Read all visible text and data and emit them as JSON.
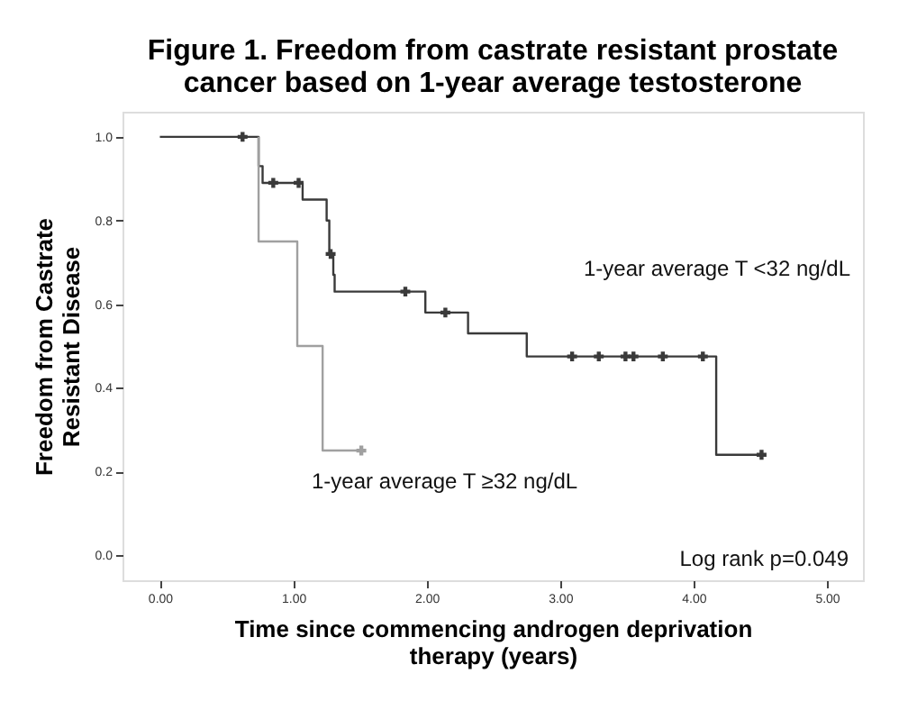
{
  "chart_data": {
    "type": "step",
    "title": "Figure 1. Freedom from castrate resistant prostate\ncancer based on 1-year average testosterone",
    "xlabel": "Time since commencing androgen deprivation\ntherapy (years)",
    "ylabel": "Freedom from Castrate\nResistant Disease",
    "xlim": [
      -0.28,
      5.27
    ],
    "ylim": [
      -0.06,
      1.06
    ],
    "xticks": [
      {
        "value": 0,
        "label": "0.00"
      },
      {
        "value": 1,
        "label": "1.00"
      },
      {
        "value": 2,
        "label": "2.00"
      },
      {
        "value": 3,
        "label": "3.00"
      },
      {
        "value": 4,
        "label": "4.00"
      },
      {
        "value": 5,
        "label": "5.00"
      }
    ],
    "yticks": [
      {
        "value": 0,
        "label": "0.0"
      },
      {
        "value": 0.2,
        "label": "0.2"
      },
      {
        "value": 0.4,
        "label": "0.4"
      },
      {
        "value": 0.6,
        "label": "0.6"
      },
      {
        "value": 0.8,
        "label": "0.8"
      },
      {
        "value": 1,
        "label": "1.0"
      }
    ],
    "grid": false,
    "series": [
      {
        "color": "#3a3a3a",
        "x": [
          0,
          0.74,
          0.77,
          1.07,
          1.25,
          1.27,
          1.3,
          1.31,
          1.99,
          2.31,
          2.75,
          4.17,
          4.51
        ],
        "values": [
          1.0,
          0.93,
          0.89,
          0.85,
          0.8,
          0.72,
          0.67,
          0.63,
          0.58,
          0.53,
          0.475,
          0.24,
          0.24
        ]
      },
      {
        "color": "#a0a0a0",
        "x": [
          0.74,
          0.74,
          1.03,
          1.22,
          1.51
        ],
        "values": [
          1.0,
          0.75,
          0.5,
          0.25,
          0.25
        ]
      },
      {
        "type": "scatter",
        "marker": "cross",
        "color": "#3a3a3a",
        "x": [
          0.62,
          0.85,
          1.04,
          1.28,
          1.84,
          2.14,
          3.09,
          3.29,
          3.49,
          3.55,
          3.77,
          4.07,
          4.51
        ],
        "values": [
          1.0,
          0.89,
          0.89,
          0.72,
          0.63,
          0.58,
          0.475,
          0.475,
          0.475,
          0.475,
          0.475,
          0.475,
          0.24
        ]
      },
      {
        "type": "scatter",
        "marker": "cross",
        "color": "#a0a0a0",
        "x": [
          1.51
        ],
        "values": [
          0.25
        ]
      }
    ],
    "annotations": [
      "1-year average T <32 ng/dL",
      "1-year average T ≥32 ng/dL",
      "Log rank p=0.049"
    ]
  }
}
